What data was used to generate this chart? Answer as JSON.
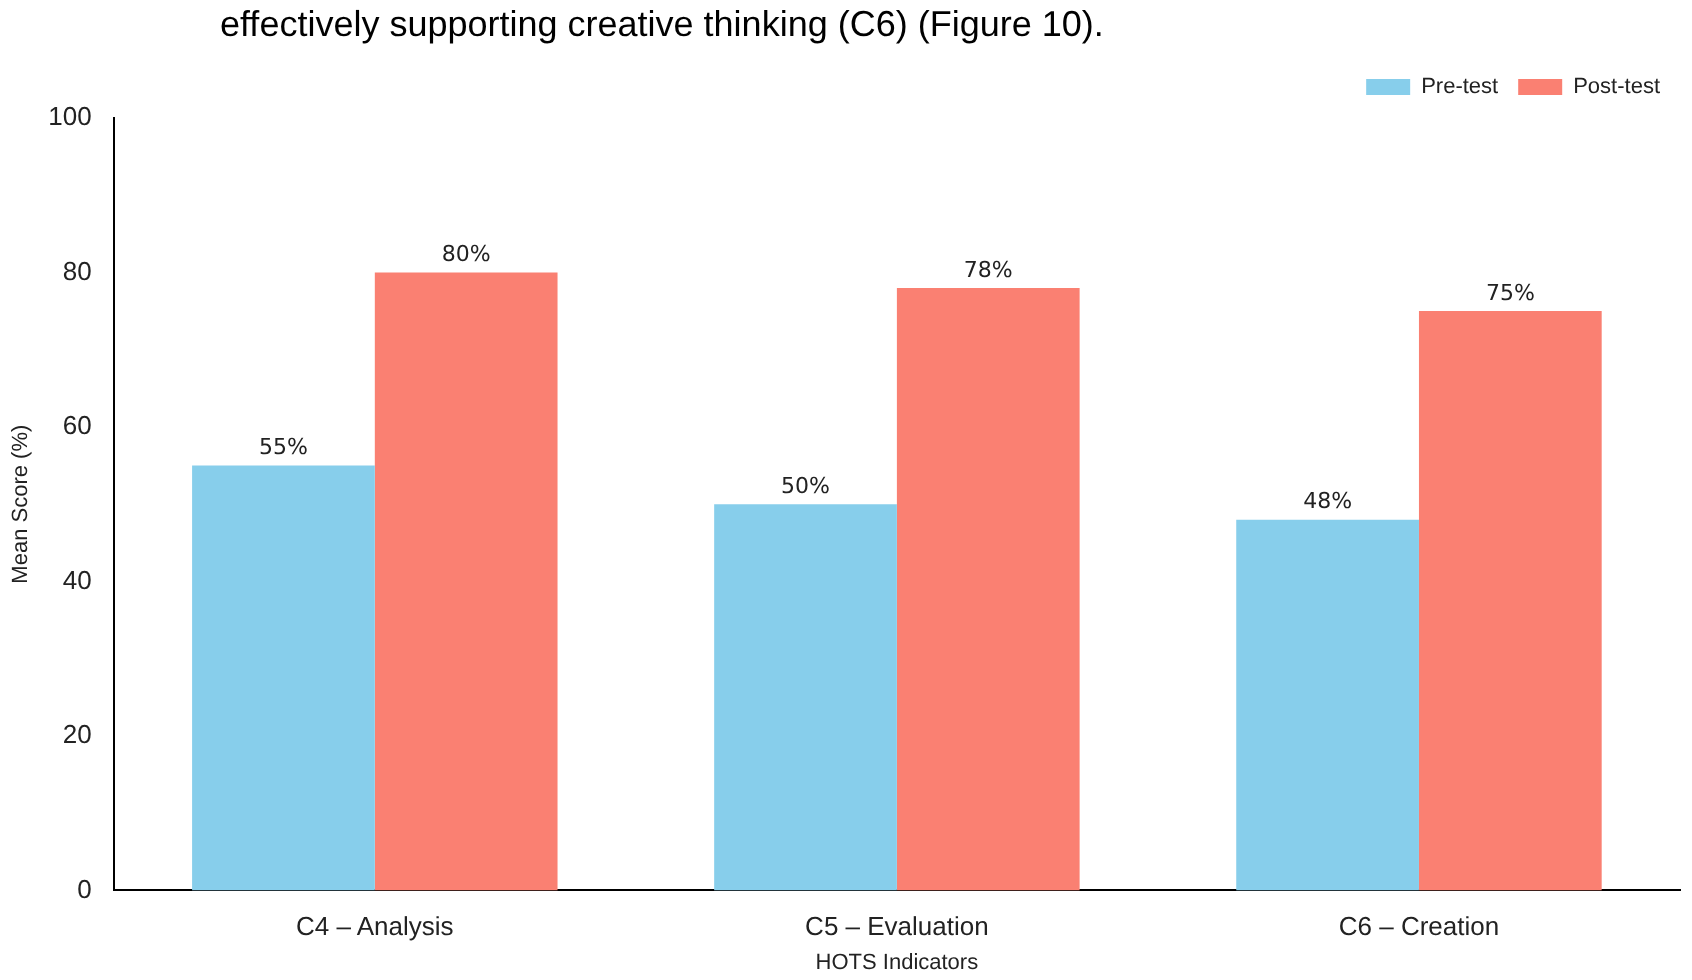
{
  "chart_data": {
    "type": "bar",
    "annotations": [
      "effectively supporting creative thinking (C6) (Figure 10)."
    ],
    "xlabel": "HOTS Indicators",
    "ylabel": "Mean Score (%)",
    "categories": [
      "C4 – Analysis",
      "C5 – Evaluation",
      "C6 – Creation"
    ],
    "series": [
      {
        "name": "Pre-test",
        "color": "#87ceeb",
        "values": [
          55,
          50,
          48
        ],
        "value_labels": [
          "55%",
          "50%",
          "48%"
        ]
      },
      {
        "name": "Post-test",
        "color": "#fa8072",
        "values": [
          80,
          78,
          75
        ],
        "value_labels": [
          "80%",
          "78%",
          "75%"
        ]
      }
    ],
    "ylim": [
      0,
      100
    ],
    "yticks": [
      0,
      20,
      40,
      60,
      80,
      100
    ],
    "grid": false,
    "legend": "top right"
  }
}
